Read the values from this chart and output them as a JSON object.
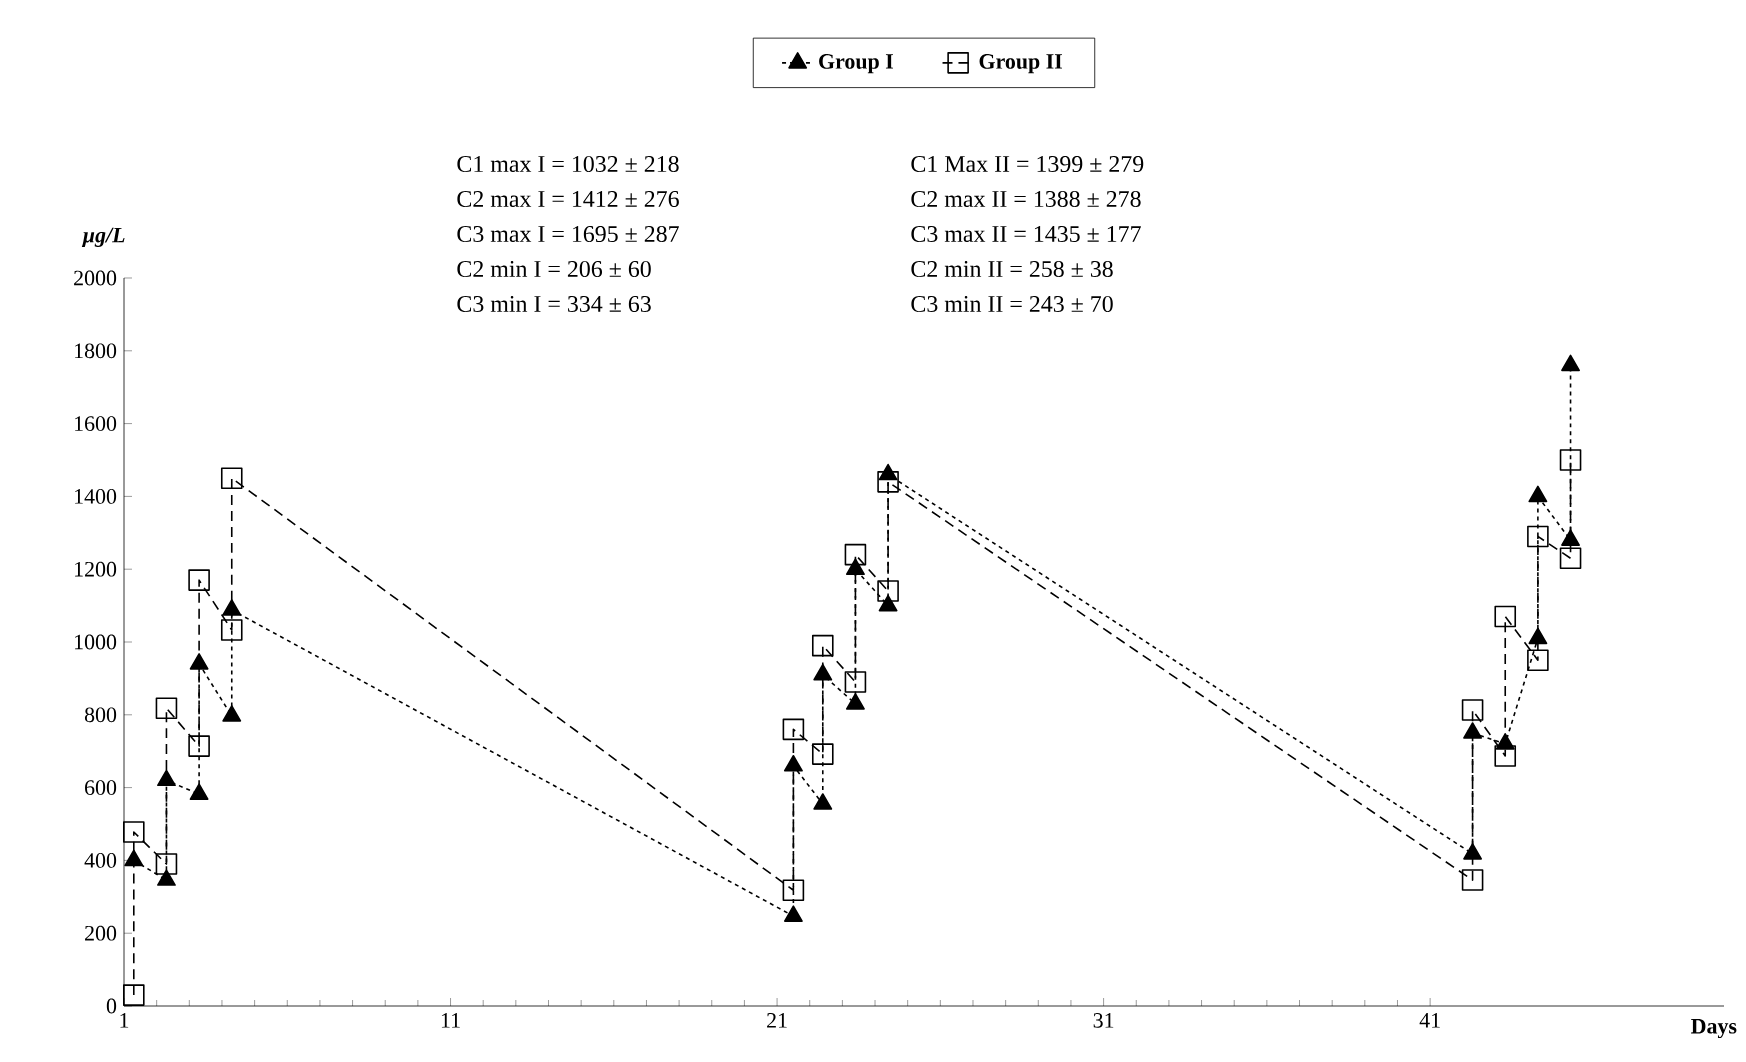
{
  "chart_data": {
    "type": "line",
    "ylabel": "µg/L",
    "xlabel": "Days",
    "xlim": [
      1,
      50
    ],
    "xticks": [
      1,
      11,
      21,
      31,
      41
    ],
    "ylim": [
      0,
      2000
    ],
    "yticks": [
      0,
      200,
      400,
      600,
      800,
      1000,
      1200,
      1400,
      1600,
      1800,
      2000
    ],
    "legend": "top",
    "grid": false,
    "series": [
      {
        "name": "Group I",
        "color": "#000000",
        "marker": "triangle",
        "line_style": "dotted",
        "x": [
          1.3,
          2.3,
          2.3,
          3.3,
          3.3,
          4.3,
          4.3,
          21.5,
          21.5,
          22.4,
          22.4,
          23.4,
          23.4,
          24.4,
          24.4,
          42.3,
          42.3,
          43.3,
          44.3,
          44.3,
          45.3,
          45.3
        ],
        "values": [
          400,
          346,
          620,
          582,
          940,
          797,
          1088,
          247,
          660,
          555,
          910,
          830,
          1200,
          1100,
          1460,
          418,
          750,
          720,
          1010,
          1400,
          1280,
          1760
        ]
      },
      {
        "name": "Group II",
        "color": "#000000",
        "marker": "square",
        "line_style": "dashed",
        "x": [
          1.3,
          1.3,
          2.3,
          2.3,
          3.3,
          3.3,
          4.3,
          4.3,
          21.5,
          21.5,
          22.4,
          22.4,
          23.4,
          23.4,
          24.4,
          24.4,
          42.3,
          42.3,
          43.3,
          43.3,
          44.3,
          44.3,
          45.3,
          45.3
        ],
        "values": [
          30,
          478,
          390,
          818,
          714,
          1170,
          1033,
          1450,
          318,
          760,
          692,
          990,
          890,
          1240,
          1140,
          1440,
          346,
          813,
          687,
          1070,
          950,
          1290,
          1230,
          1500
        ]
      }
    ],
    "annotations": [
      "C1 max I = 1032 ± 218",
      "C2 max I = 1412 ± 276",
      "C3 max I = 1695 ± 287",
      "C2 min I = 206 ± 60",
      "C3 min I = 334 ± 63",
      "C1 Max II = 1399 ± 279",
      "C2 max II = 1388 ± 278",
      "C3 max II = 1435 ± 177",
      "C2 min II = 258 ± 38",
      "C3 min II = 243 ± 70"
    ]
  }
}
